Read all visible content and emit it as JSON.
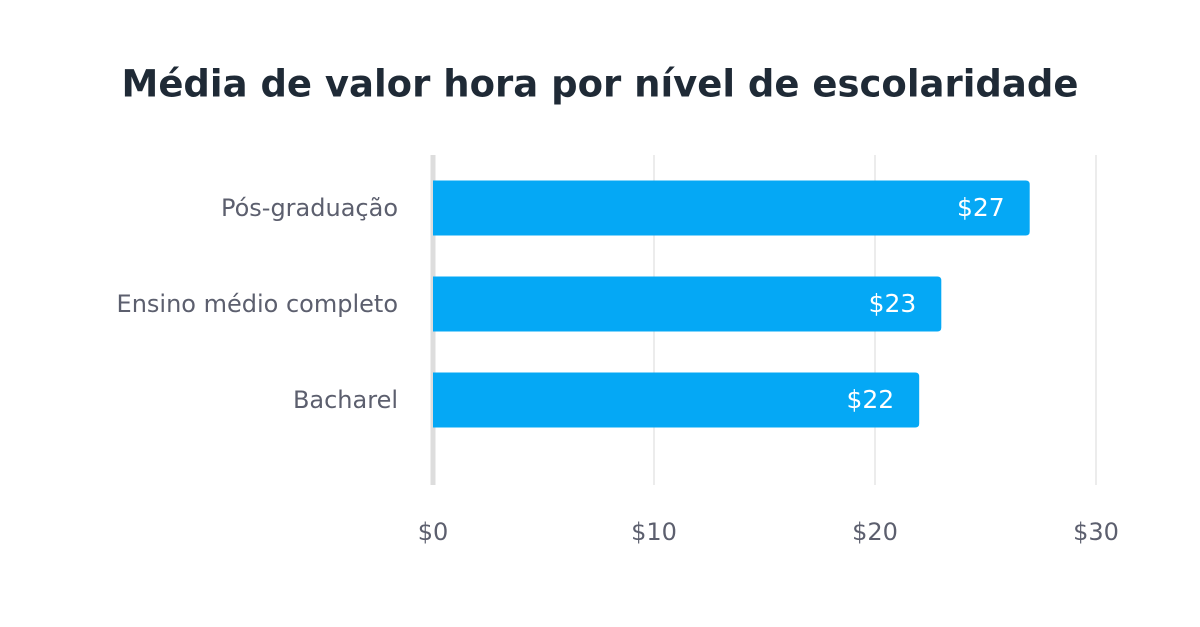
{
  "chart_data": {
    "type": "bar",
    "orientation": "horizontal",
    "title": "Média de valor hora por nível de escolaridade",
    "categories": [
      "Pós-graduação",
      "Ensino médio completo",
      "Bacharel"
    ],
    "values": [
      27,
      23,
      22
    ],
    "value_labels": [
      "$27",
      "$23",
      "$22"
    ],
    "color": "#05a8f5",
    "xlim": [
      0,
      30
    ],
    "xticks": [
      {
        "value": 0,
        "label": "$0"
      },
      {
        "value": 10,
        "label": "$10"
      },
      {
        "value": 20,
        "label": "$20"
      },
      {
        "value": 30,
        "label": "$30"
      }
    ],
    "grid": true
  }
}
